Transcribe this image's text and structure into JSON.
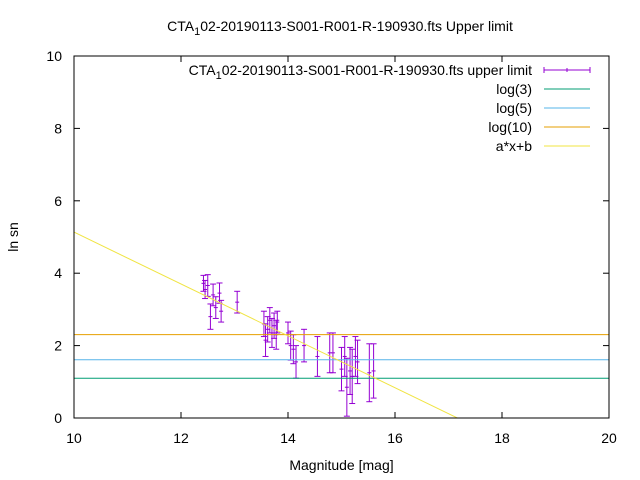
{
  "chart_data": {
    "type": "scatter",
    "title": {
      "prefix": "CTA",
      "sub": "1",
      "suffix": "02-20190113-S001-R001-R-190930.fts Upper limit"
    },
    "xlabel": "Magnitude [mag]",
    "ylabel": "ln sn",
    "xlim": [
      10,
      20
    ],
    "ylim": [
      0,
      10
    ],
    "xticks": [
      10,
      12,
      14,
      16,
      18,
      20
    ],
    "yticks": [
      0,
      2,
      4,
      6,
      8,
      10
    ],
    "grid": false,
    "legend_position": "top-right",
    "series": [
      {
        "name": {
          "prefix": "CTA",
          "sub": "1",
          "suffix": "02-20190113-S001-R001-R-190930.fts upper limit"
        },
        "kind": "errorbars",
        "color": "#9400d3",
        "points": [
          {
            "x": 12.42,
            "y": 3.72,
            "err": 0.22
          },
          {
            "x": 12.45,
            "y": 3.55,
            "err": 0.25
          },
          {
            "x": 12.5,
            "y": 3.66,
            "err": 0.3
          },
          {
            "x": 12.55,
            "y": 2.8,
            "err": 0.35
          },
          {
            "x": 12.6,
            "y": 3.4,
            "err": 0.3
          },
          {
            "x": 12.65,
            "y": 3.05,
            "err": 0.3
          },
          {
            "x": 12.72,
            "y": 3.45,
            "err": 0.28
          },
          {
            "x": 12.75,
            "y": 2.95,
            "err": 0.3
          },
          {
            "x": 13.05,
            "y": 3.2,
            "err": 0.3
          },
          {
            "x": 13.55,
            "y": 2.6,
            "err": 0.35
          },
          {
            "x": 13.58,
            "y": 2.15,
            "err": 0.45
          },
          {
            "x": 13.62,
            "y": 2.45,
            "err": 0.35
          },
          {
            "x": 13.66,
            "y": 2.7,
            "err": 0.35
          },
          {
            "x": 13.7,
            "y": 2.35,
            "err": 0.4
          },
          {
            "x": 13.74,
            "y": 2.55,
            "err": 0.35
          },
          {
            "x": 13.78,
            "y": 2.3,
            "err": 0.4
          },
          {
            "x": 13.8,
            "y": 2.65,
            "err": 0.3
          },
          {
            "x": 14.0,
            "y": 2.35,
            "err": 0.3
          },
          {
            "x": 14.05,
            "y": 2.0,
            "err": 0.4
          },
          {
            "x": 14.1,
            "y": 1.9,
            "err": 0.4
          },
          {
            "x": 14.15,
            "y": 1.55,
            "err": 0.45
          },
          {
            "x": 14.3,
            "y": 2.0,
            "err": 0.45
          },
          {
            "x": 14.55,
            "y": 1.7,
            "err": 0.55
          },
          {
            "x": 14.78,
            "y": 1.8,
            "err": 0.55
          },
          {
            "x": 14.84,
            "y": 1.8,
            "err": 0.55
          },
          {
            "x": 15.0,
            "y": 1.35,
            "err": 0.6
          },
          {
            "x": 15.06,
            "y": 1.7,
            "err": 0.55
          },
          {
            "x": 15.1,
            "y": 0.85,
            "err": 0.8
          },
          {
            "x": 15.16,
            "y": 1.3,
            "err": 0.65
          },
          {
            "x": 15.2,
            "y": 1.15,
            "err": 0.75
          },
          {
            "x": 15.26,
            "y": 1.7,
            "err": 0.55
          },
          {
            "x": 15.3,
            "y": 1.55,
            "err": 0.6
          },
          {
            "x": 15.52,
            "y": 1.25,
            "err": 0.8
          },
          {
            "x": 15.6,
            "y": 1.3,
            "err": 0.75
          }
        ]
      },
      {
        "name": "log(3)",
        "kind": "hline",
        "color": "#009e73",
        "y": 1.0986
      },
      {
        "name": "log(5)",
        "kind": "hline",
        "color": "#56b4e9",
        "y": 1.6094
      },
      {
        "name": "log(10)",
        "kind": "hline",
        "color": "#e69f00",
        "y": 2.3026
      },
      {
        "name": "a*x+b",
        "kind": "fitline",
        "color": "#f0e442",
        "a": -0.7165,
        "b": 12.3
      }
    ]
  }
}
